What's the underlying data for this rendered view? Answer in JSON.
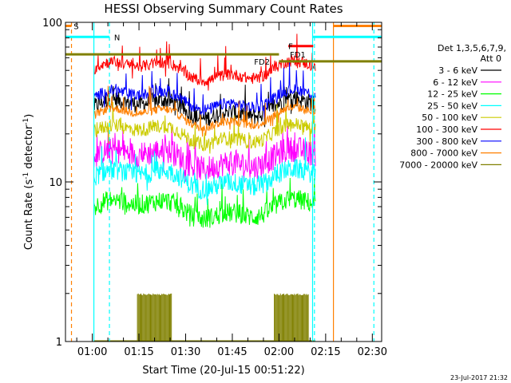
{
  "chart_data": {
    "type": "line",
    "title": "HESSI Observing Summary Count Rates",
    "xlabel": "Start Time (20-Jul-15 00:51:22)",
    "ylabel_main": "Count Rate (s",
    "ylabel_sup1": "-1",
    "ylabel_mid": " detector",
    "ylabel_sup2": "-1",
    "ylabel_end": ")",
    "yscale": "log",
    "ylim": [
      1,
      100
    ],
    "xlim_minutes": [
      51.37,
      153.0
    ],
    "x_ticks": [
      {
        "label": "01:00",
        "min": 60
      },
      {
        "label": "01:15",
        "min": 75
      },
      {
        "label": "01:30",
        "min": 90
      },
      {
        "label": "01:45",
        "min": 105
      },
      {
        "label": "02:00",
        "min": 120
      },
      {
        "label": "02:15",
        "min": 135
      },
      {
        "label": "02:30",
        "min": 150
      }
    ],
    "y_ticks": [
      {
        "label": "1",
        "value": 1
      },
      {
        "label": "10",
        "value": 10
      },
      {
        "label": "100",
        "value": 100
      }
    ],
    "legend_header": [
      "Det 1,3,5,6,7,9,",
      "Att 0"
    ],
    "series": [
      {
        "name": "3 - 6 keV",
        "color": "#000000",
        "level": 29,
        "noise": 0.06
      },
      {
        "name": "6 - 12 keV",
        "color": "#ff00ff",
        "level": 14,
        "noise": 0.09
      },
      {
        "name": "12 - 25 keV",
        "color": "#00ff00",
        "level": 6.8,
        "noise": 0.07
      },
      {
        "name": "25 - 50 keV",
        "color": "#00ffff",
        "level": 10.5,
        "noise": 0.07
      },
      {
        "name": "50 - 100 keV",
        "color": "#cccc00",
        "level": 20,
        "noise": 0.05
      },
      {
        "name": "100 - 300 keV",
        "color": "#ff0000",
        "level": 50,
        "noise": 0.04
      },
      {
        "name": "300 - 800 keV",
        "color": "#0000ff",
        "level": 33,
        "noise": 0.04
      },
      {
        "name": "800 - 7000 keV",
        "color": "#ff8000",
        "level": 25.5,
        "noise": 0.03
      },
      {
        "name": "7000 - 20000 keV",
        "color": "#808000",
        "level": 1,
        "noise": 0
      }
    ],
    "data_start_min": 60.5,
    "data_end_min": 131.7,
    "flags": [
      {
        "label": "S",
        "color": "#ff8000",
        "y": 95,
        "x_start": 51.5,
        "x_end": 53.3,
        "x_start2": 137.5,
        "x_end2": 153.0
      },
      {
        "label": "N",
        "color": "#00ffff",
        "y": 81,
        "x_start": 51.5,
        "x_end": 65.5,
        "x_start2": 130.8,
        "x_end2": 153.0
      },
      {
        "label": "F",
        "color": "#ff0000",
        "y": 71,
        "x_start": 123.0,
        "x_end": 131.0
      },
      {
        "label": "FD1",
        "color": "#808000",
        "y": 63,
        "x_start": 51.5,
        "x_end": 120.0
      },
      {
        "label": "FD2",
        "color": "#808000",
        "y": 57,
        "x_start": 120.0,
        "x_end": 153.0
      }
    ],
    "flag_labels_x": [
      {
        "label": "S",
        "x": 54.0
      },
      {
        "label": "N",
        "x": 67.0
      },
      {
        "label": "F",
        "x": 123.0
      },
      {
        "label": "FD1",
        "x": 123.5
      },
      {
        "label": "FD2",
        "x": 112.0
      }
    ],
    "vertical_lines": [
      {
        "min": 53.3,
        "color": "#ff8000",
        "dash": true
      },
      {
        "min": 60.5,
        "color": "#00ffff",
        "dash": false
      },
      {
        "min": 65.5,
        "color": "#00ffff",
        "dash": true
      },
      {
        "min": 130.8,
        "color": "#00ffff",
        "dash": false
      },
      {
        "min": 131.4,
        "color": "#00ffff",
        "dash": true
      },
      {
        "min": 137.5,
        "color": "#ff8000",
        "dash": false
      },
      {
        "min": 150.5,
        "color": "#00ffff",
        "dash": true
      }
    ]
  },
  "footer_date": "23-Jul-2017 21:32"
}
